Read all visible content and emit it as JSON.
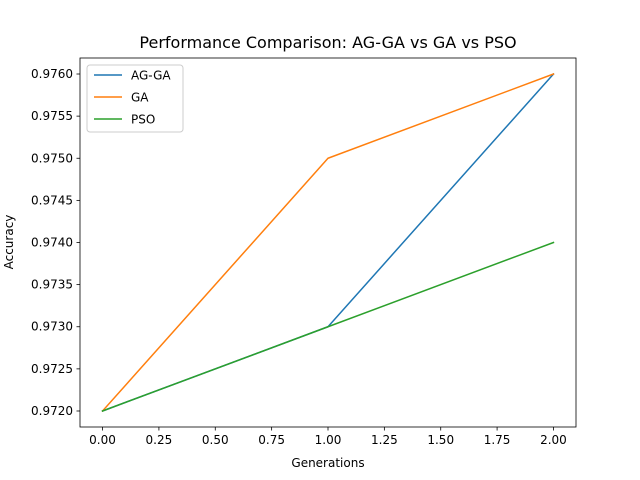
{
  "chart_data": {
    "type": "line",
    "title": "Performance Comparison: AG-GA vs GA vs PSO",
    "xlabel": "Generations",
    "ylabel": "Accuracy",
    "x": [
      0,
      1,
      2
    ],
    "xlim": [
      -0.1,
      2.1
    ],
    "ylim": [
      0.97181,
      0.97619
    ],
    "xticks": [
      0.0,
      0.25,
      0.5,
      0.75,
      1.0,
      1.25,
      1.5,
      1.75,
      2.0
    ],
    "xtick_labels": [
      "0.00",
      "0.25",
      "0.50",
      "0.75",
      "1.00",
      "1.25",
      "1.50",
      "1.75",
      "2.00"
    ],
    "yticks": [
      0.972,
      0.9725,
      0.973,
      0.9735,
      0.974,
      0.9745,
      0.975,
      0.9755,
      0.976
    ],
    "ytick_labels": [
      "0.9720",
      "0.9725",
      "0.9730",
      "0.9735",
      "0.9740",
      "0.9745",
      "0.9750",
      "0.9755",
      "0.9760"
    ],
    "grid": false,
    "legend_position": "top-left",
    "series": [
      {
        "name": "AG-GA",
        "values": [
          0.972,
          0.973,
          0.976
        ],
        "color": "#1f77b4"
      },
      {
        "name": "GA",
        "values": [
          0.972,
          0.975,
          0.976
        ],
        "color": "#ff7f0e"
      },
      {
        "name": "PSO",
        "values": [
          0.972,
          0.973,
          0.974
        ],
        "color": "#2ca02c"
      }
    ]
  }
}
